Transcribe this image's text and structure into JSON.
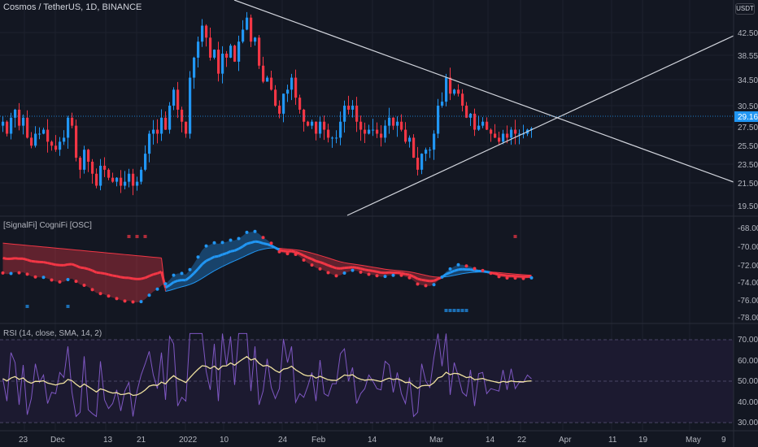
{
  "header": {
    "symbol_title": "Cosmos / TetherUS, 1D, BINANCE",
    "currency_button": "USDT"
  },
  "price_pane": {
    "axis_labels": [
      "42.50",
      "38.55",
      "34.50",
      "30.50",
      "27.50",
      "25.50",
      "23.50",
      "21.50",
      "19.50"
    ],
    "current_price_label": "29.16",
    "colors": {
      "up": "#2196f3",
      "down": "#f23645",
      "last_price_bg": "#2196f3",
      "trendline": "#d1d4dc"
    }
  },
  "osc_pane": {
    "title": "[SignalFi] CogniFi [OSC]",
    "axis_labels": [
      "-68.00",
      "-70.00",
      "-72.00",
      "-74.00",
      "-76.00",
      "-78.00"
    ],
    "colors": {
      "bull": "#2196f3",
      "bear": "#f23645"
    }
  },
  "rsi_pane": {
    "title": "RSI (14, close, SMA, 14, 2)",
    "axis_labels": [
      "70.00",
      "60.00",
      "50.00",
      "40.00",
      "30.00"
    ],
    "colors": {
      "rsi_line": "#7e57c2",
      "ma_line": "#f0e2a0",
      "band_fill": "#1e1b33"
    }
  },
  "time_axis": {
    "labels": [
      "23",
      "Dec",
      "13",
      "21",
      "2022",
      "10",
      "24",
      "Feb",
      "14",
      "Mar",
      "14",
      "22",
      "Apr",
      "11",
      "19",
      "May",
      "9"
    ]
  },
  "chart_data": [
    {
      "type": "candlestick",
      "title": "Cosmos / TetherUS, 1D, BINANCE",
      "ylim": [
        18.5,
        45.0
      ],
      "last_price": 29.16,
      "trendlines": [
        {
          "from": [
            "Nov 10",
            50.0
          ],
          "to": [
            "Apr 30",
            20.0
          ]
        },
        {
          "from": [
            "Feb 2",
            18.5
          ],
          "to": [
            "May 10",
            41.5
          ]
        }
      ],
      "close_series": [
        30.0,
        28.5,
        30.5,
        31.5,
        29.5,
        30.5,
        28.0,
        27.0,
        28.5,
        28.5,
        29.0,
        27.5,
        27.0,
        26.5,
        27.5,
        28.0,
        30.5,
        29.5,
        25.5,
        24.0,
        26.5,
        25.0,
        23.5,
        22.0,
        24.5,
        24.0,
        23.0,
        22.5,
        23.0,
        22.0,
        22.5,
        23.5,
        22.0,
        22.5,
        24.0,
        26.0,
        28.5,
        29.0,
        28.5,
        30.5,
        29.0,
        32.0,
        34.0,
        31.5,
        30.0,
        28.5,
        35.5,
        38.0,
        40.0,
        42.0,
        40.5,
        38.0,
        39.0,
        36.0,
        38.5,
        38.0,
        39.5,
        37.5,
        40.0,
        41.5,
        43.0,
        40.0,
        40.5,
        37.0,
        35.0,
        35.5,
        34.0,
        32.0,
        31.0,
        33.5,
        34.0,
        35.5,
        33.0,
        31.5,
        30.0,
        29.5,
        30.0,
        28.5,
        30.0,
        29.0,
        28.0,
        28.0,
        28.0,
        30.0,
        32.0,
        31.5,
        32.0,
        30.0,
        29.0,
        28.5,
        29.0,
        29.0,
        28.5,
        28.0,
        29.5,
        30.5,
        29.5,
        30.0,
        29.0,
        27.5,
        28.0,
        25.5,
        24.0,
        26.0,
        26.5,
        26.5,
        28.5,
        32.0,
        32.5,
        35.5,
        33.5,
        34.0,
        33.5,
        32.0,
        30.5,
        31.0,
        29.0,
        29.5,
        30.0,
        29.0,
        28.5,
        28.0,
        27.5,
        28.5,
        28.0,
        29.0,
        28.5,
        28.5,
        28.5,
        29.0,
        29.16
      ]
    },
    {
      "type": "line",
      "title": "[SignalFi] CogniFi [OSC]",
      "ylim": [
        -78.5,
        -67.0
      ]
    },
    {
      "type": "line",
      "title": "RSI (14, close, SMA, 14, 2)",
      "ylim": [
        28,
        74
      ],
      "bands": [
        70,
        50,
        30
      ]
    }
  ]
}
